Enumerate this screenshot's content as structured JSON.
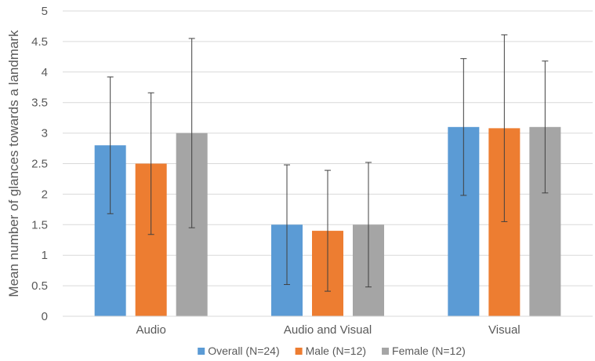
{
  "chart_data": {
    "type": "bar",
    "title": "",
    "xlabel": "",
    "ylabel": "Mean number of glances towards a landmark",
    "ylim": [
      0,
      5
    ],
    "yticks": [
      "0",
      "0.5",
      "1",
      "1.5",
      "2",
      "2.5",
      "3",
      "3.5",
      "4",
      "4.5",
      "5"
    ],
    "ytick_values": [
      0,
      0.5,
      1,
      1.5,
      2,
      2.5,
      3,
      3.5,
      4,
      4.5,
      5
    ],
    "grid": true,
    "legend_position": "bottom",
    "categories": [
      "Audio",
      "Audio and Visual",
      "Visual"
    ],
    "series": [
      {
        "name": "Overall (N=24)",
        "color": "#5b9bd5",
        "values": [
          2.8,
          1.5,
          3.1
        ],
        "error_low": [
          1.68,
          0.52,
          1.98
        ],
        "error_high": [
          3.92,
          2.48,
          4.22
        ]
      },
      {
        "name": "Male (N=12)",
        "color": "#ed7d31",
        "values": [
          2.5,
          1.4,
          3.08
        ],
        "error_low": [
          1.34,
          0.41,
          1.55
        ],
        "error_high": [
          3.66,
          2.39,
          4.61
        ]
      },
      {
        "name": "Female (N=12)",
        "color": "#a5a5a5",
        "values": [
          3.0,
          1.5,
          3.1
        ],
        "error_low": [
          1.45,
          0.48,
          2.02
        ],
        "error_high": [
          4.55,
          2.52,
          4.18
        ]
      }
    ]
  }
}
